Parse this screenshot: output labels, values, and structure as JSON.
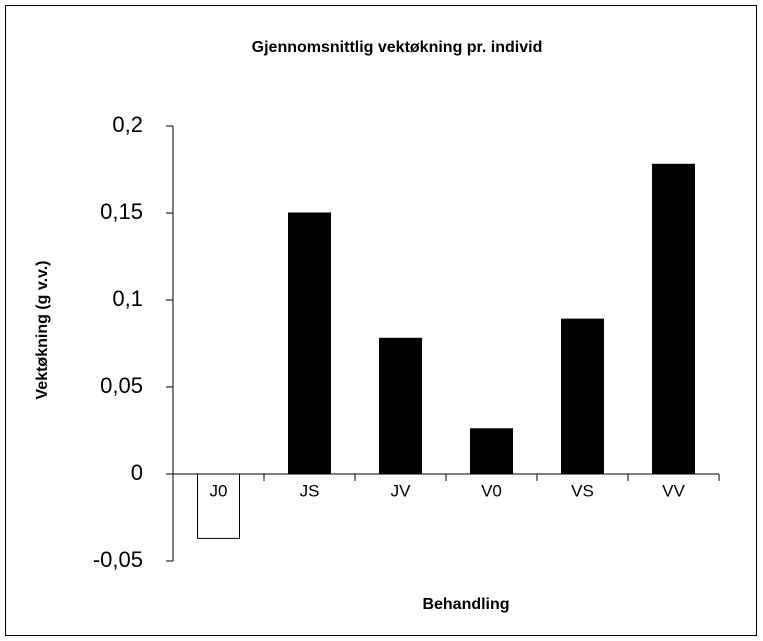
{
  "chart_data": {
    "type": "bar",
    "title": "Gjennomsnittlig vektøkning pr. individ",
    "x_label": "Behandling",
    "y_label": "Vektøkning (g v.v.)",
    "categories": [
      "J0",
      "JS",
      "JV",
      "V0",
      "VS",
      "VV"
    ],
    "values": [
      -0.037,
      0.15,
      0.078,
      0.026,
      0.089,
      0.178
    ],
    "colors": [
      "#ffffff",
      "#000000",
      "#000000",
      "#000000",
      "#000000",
      "#000000"
    ],
    "ylim": [
      -0.05,
      0.2
    ],
    "yticks": [
      {
        "value": -0.05,
        "label": "-0,05"
      },
      0,
      {
        "value": 0.05,
        "label": "0,05"
      },
      {
        "value": 0.1,
        "label": "0,1"
      },
      {
        "value": 0.15,
        "label": "0,15"
      },
      {
        "value": 0.2,
        "label": "0,2"
      }
    ],
    "grid": false
  }
}
